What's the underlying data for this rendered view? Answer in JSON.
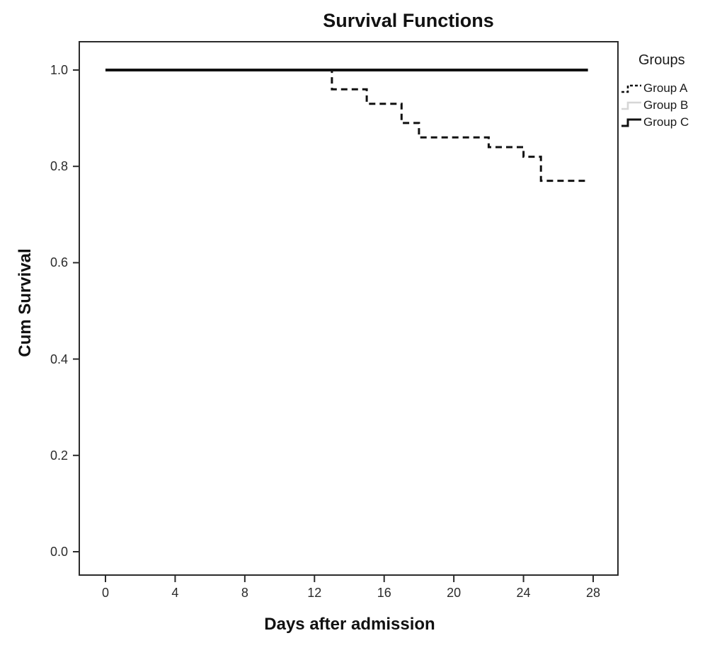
{
  "chart_data": {
    "type": "line",
    "subtype": "kaplan-meier-step-survival",
    "title": "Survival Functions",
    "xlabel": "Days after admission",
    "ylabel": "Cum Survival",
    "xticks": [
      "0",
      "4",
      "8",
      "12",
      "16",
      "20",
      "24",
      "28"
    ],
    "yticks": [
      "0.0",
      "0.2",
      "0.4",
      "0.6",
      "0.8",
      "1.0"
    ],
    "xlim": [
      -1.6,
      29.4
    ],
    "ylim": [
      -0.05,
      1.06
    ],
    "grid": false,
    "frame_color": "#2b2b2b",
    "tick_label_color": "#2b2b2b",
    "legend": {
      "title": "Groups",
      "position": "right-outside",
      "swatch_shape": "step-line"
    },
    "series": [
      {
        "name": "Group A",
        "style": "dashed",
        "color": "#111111",
        "points": [
          [
            0,
            1.0
          ],
          [
            13,
            1.0
          ],
          [
            13,
            0.96
          ],
          [
            15,
            0.96
          ],
          [
            15,
            0.93
          ],
          [
            17,
            0.93
          ],
          [
            17,
            0.89
          ],
          [
            18,
            0.89
          ],
          [
            18,
            0.86
          ],
          [
            22,
            0.86
          ],
          [
            22,
            0.84
          ],
          [
            24,
            0.84
          ],
          [
            24,
            0.82
          ],
          [
            25,
            0.82
          ],
          [
            25,
            0.77
          ],
          [
            27.6,
            0.77
          ]
        ]
      },
      {
        "name": "Group B",
        "style": "solid",
        "color": "#d6d6d6",
        "points": [
          [
            0,
            1.0
          ],
          [
            27.7,
            1.0
          ]
        ]
      },
      {
        "name": "Group C",
        "style": "solid",
        "color": "#111111",
        "points": [
          [
            0,
            1.0
          ],
          [
            27.7,
            1.0
          ]
        ]
      }
    ]
  }
}
